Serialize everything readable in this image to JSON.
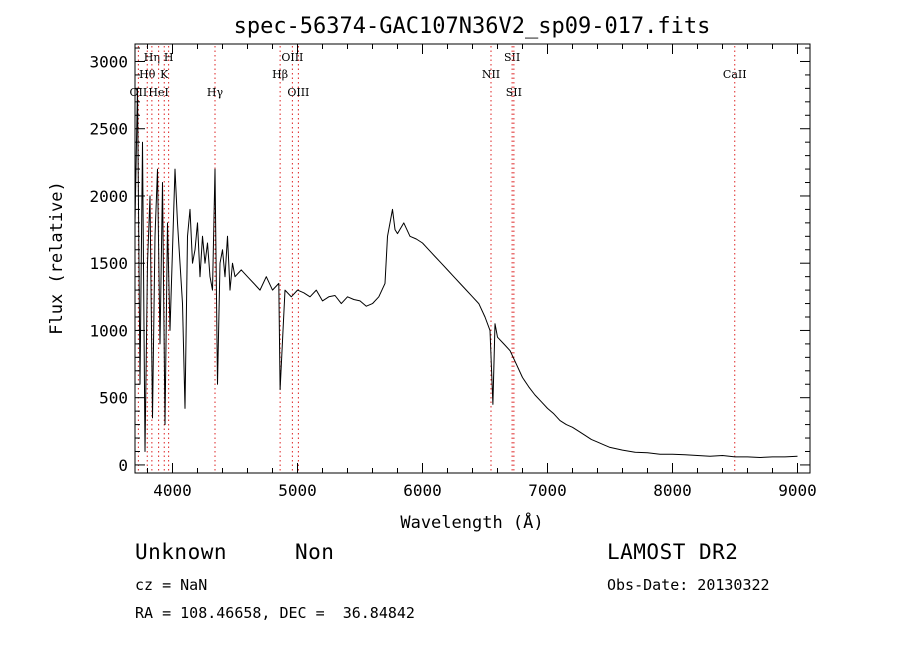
{
  "chart_data": {
    "type": "line",
    "title": "spec-56374-GAC107N36V2_sp09-017.fits",
    "xlabel": "Wavelength (Å)",
    "ylabel": "Flux (relative)",
    "xlim": [
      3700,
      9100
    ],
    "ylim": [
      -60,
      3130
    ],
    "xticks": [
      4000,
      5000,
      6000,
      7000,
      8000,
      9000
    ],
    "yticks": [
      0,
      500,
      1000,
      1500,
      2000,
      2500,
      3000
    ],
    "grid": false,
    "series": [
      {
        "x": [
          3700,
          3720,
          3740,
          3760,
          3780,
          3800,
          3820,
          3840,
          3860,
          3880,
          3900,
          3920,
          3940,
          3960,
          3980,
          4000,
          4020,
          4040,
          4060,
          4080,
          4100,
          4120,
          4140,
          4160,
          4180,
          4200,
          4220,
          4240,
          4260,
          4280,
          4300,
          4320,
          4340,
          4360,
          4380,
          4400,
          4420,
          4440,
          4460,
          4480,
          4500,
          4550,
          4600,
          4650,
          4700,
          4750,
          4800,
          4850,
          4861,
          4900,
          4950,
          5000,
          5050,
          5100,
          5150,
          5200,
          5250,
          5300,
          5350,
          5400,
          5450,
          5500,
          5550,
          5600,
          5650,
          5700,
          5720,
          5740,
          5760,
          5780,
          5800,
          5850,
          5900,
          5950,
          6000,
          6050,
          6100,
          6150,
          6200,
          6250,
          6300,
          6350,
          6400,
          6450,
          6500,
          6540,
          6563,
          6580,
          6600,
          6650,
          6700,
          6750,
          6800,
          6850,
          6900,
          6950,
          7000,
          7050,
          7100,
          7150,
          7200,
          7250,
          7300,
          7350,
          7400,
          7450,
          7500,
          7600,
          7700,
          7800,
          7900,
          8000,
          8100,
          8200,
          8300,
          8400,
          8500,
          8600,
          8700,
          8800,
          8900,
          9000
        ],
        "y": [
          1800,
          2800,
          600,
          2400,
          100,
          1500,
          2000,
          350,
          1700,
          2200,
          900,
          2100,
          300,
          1800,
          1000,
          1600,
          2200,
          1800,
          1500,
          1200,
          420,
          1700,
          1900,
          1500,
          1600,
          1800,
          1400,
          1700,
          1500,
          1650,
          1400,
          1300,
          2200,
          600,
          1500,
          1600,
          1400,
          1700,
          1300,
          1500,
          1400,
          1450,
          1400,
          1350,
          1300,
          1400,
          1300,
          1350,
          560,
          1300,
          1250,
          1300,
          1280,
          1250,
          1300,
          1220,
          1250,
          1260,
          1200,
          1250,
          1230,
          1220,
          1180,
          1200,
          1250,
          1350,
          1700,
          1800,
          1900,
          1750,
          1720,
          1800,
          1700,
          1680,
          1650,
          1600,
          1550,
          1500,
          1450,
          1400,
          1350,
          1300,
          1250,
          1200,
          1100,
          1000,
          450,
          1050,
          950,
          900,
          850,
          750,
          650,
          580,
          520,
          470,
          420,
          380,
          330,
          300,
          280,
          250,
          220,
          190,
          170,
          150,
          130,
          110,
          95,
          90,
          80,
          80,
          75,
          70,
          65,
          70,
          60,
          60,
          55,
          60,
          60,
          65
        ]
      }
    ],
    "lines": [
      {
        "label": "OII",
        "x": 3727,
        "row": 3
      },
      {
        "label": "Hθ",
        "x": 3798,
        "row": 2
      },
      {
        "label": "Hη",
        "x": 3835,
        "row": 1
      },
      {
        "label": "HeI",
        "x": 3889,
        "row": 3
      },
      {
        "label": "K",
        "x": 3934,
        "row": 2
      },
      {
        "label": "H",
        "x": 3969,
        "row": 1
      },
      {
        "label": "Hγ",
        "x": 4340,
        "row": 3
      },
      {
        "label": "Hβ",
        "x": 4861,
        "row": 2
      },
      {
        "label": "OIII",
        "x": 4959,
        "row": 1
      },
      {
        "label": "OIII",
        "x": 5007,
        "row": 3
      },
      {
        "label": "NII",
        "x": 6548,
        "row": 2
      },
      {
        "label": "SII",
        "x": 6717,
        "row": 1
      },
      {
        "label": "SII",
        "x": 6731,
        "row": 3
      },
      {
        "label": "CaII",
        "x": 8498,
        "row": 2
      }
    ]
  },
  "info": {
    "object_class": "Unknown",
    "subclass": "Non",
    "cz": "cz = NaN",
    "coords": "RA = 108.46658, DEC =  36.84842",
    "survey": "LAMOST DR2",
    "obs_date": "Obs-Date: 20130322"
  }
}
